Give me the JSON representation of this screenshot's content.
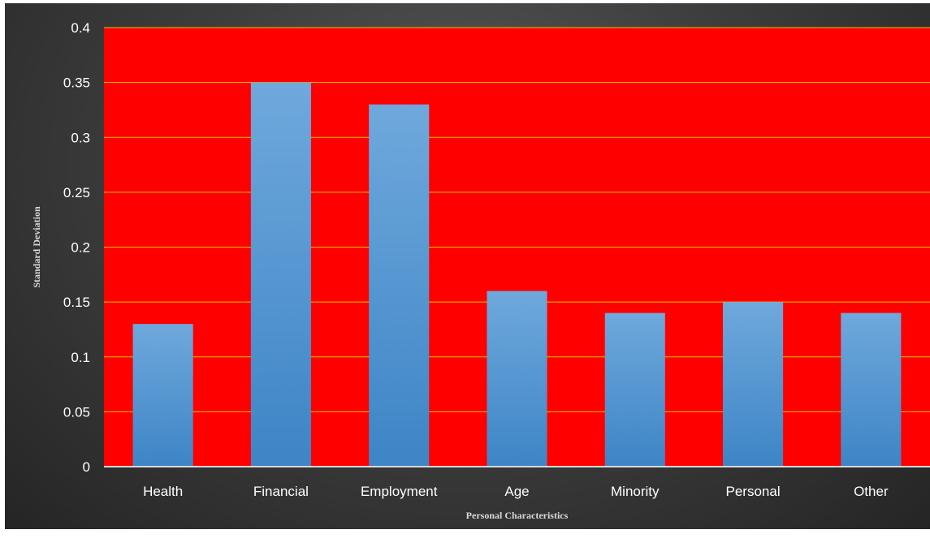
{
  "chart_data": {
    "type": "bar",
    "categories": [
      "Health",
      "Financial",
      "Employment",
      "Age",
      "Minority",
      "Personal",
      "Other"
    ],
    "values": [
      0.13,
      0.35,
      0.33,
      0.16,
      0.14,
      0.15,
      0.14
    ],
    "title": "",
    "xlabel": "Personal Characteristics",
    "ylabel": "Standard Deviation",
    "ylim": [
      0,
      0.4
    ],
    "yticks": [
      "0",
      "0.05",
      "0.1",
      "0.15",
      "0.2",
      "0.25",
      "0.3",
      "0.35",
      "0.4"
    ],
    "grid": true,
    "legend": "none",
    "colors": {
      "plot_background": "#ff0000",
      "gridline": "#e8c000",
      "bar_top": "#6fa8dc",
      "bar_bottom": "#3d85c6",
      "axis_line": "#d9d9d9",
      "tick_text": "#ffffff"
    }
  }
}
